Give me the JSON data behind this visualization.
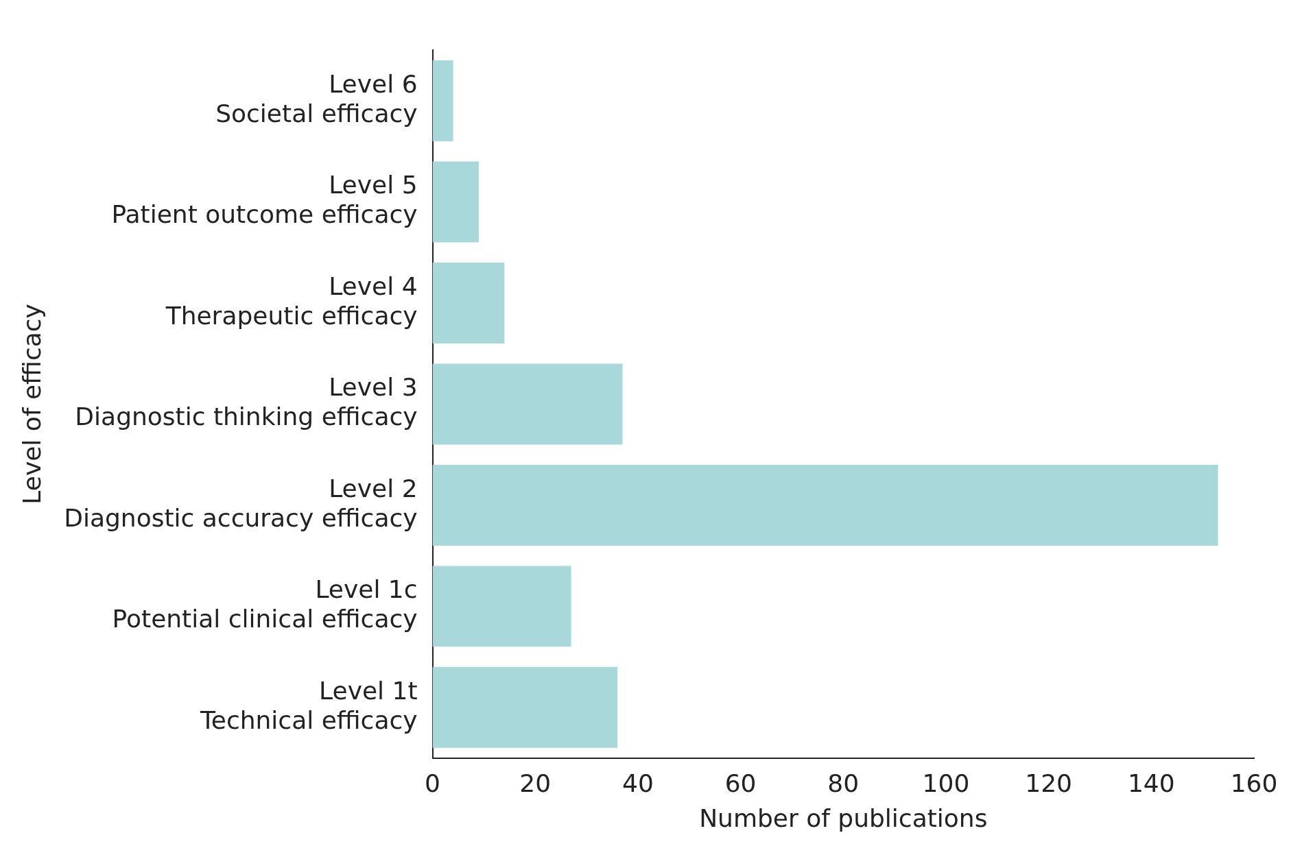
{
  "chart_data": {
    "type": "bar",
    "orientation": "horizontal",
    "xlabel": "Number of publications",
    "ylabel": "Level of efficacy",
    "categories": [
      "Level 6\nSocietal efficacy",
      "Level 5\nPatient outcome efficacy",
      "Level 4\nTherapeutic efficacy",
      "Level 3\nDiagnostic thinking efficacy",
      "Level 2\nDiagnostic accuracy efficacy",
      "Level 1c\nPotential clinical efficacy",
      "Level 1t\nTechnical efficacy"
    ],
    "values": [
      4,
      9,
      14,
      37,
      153,
      27,
      36
    ],
    "color": "#a8d8da",
    "xlim": [
      0,
      160
    ],
    "xticks": [
      0,
      20,
      40,
      60,
      80,
      100,
      120,
      140,
      160
    ],
    "grid": false,
    "legend": false
  }
}
